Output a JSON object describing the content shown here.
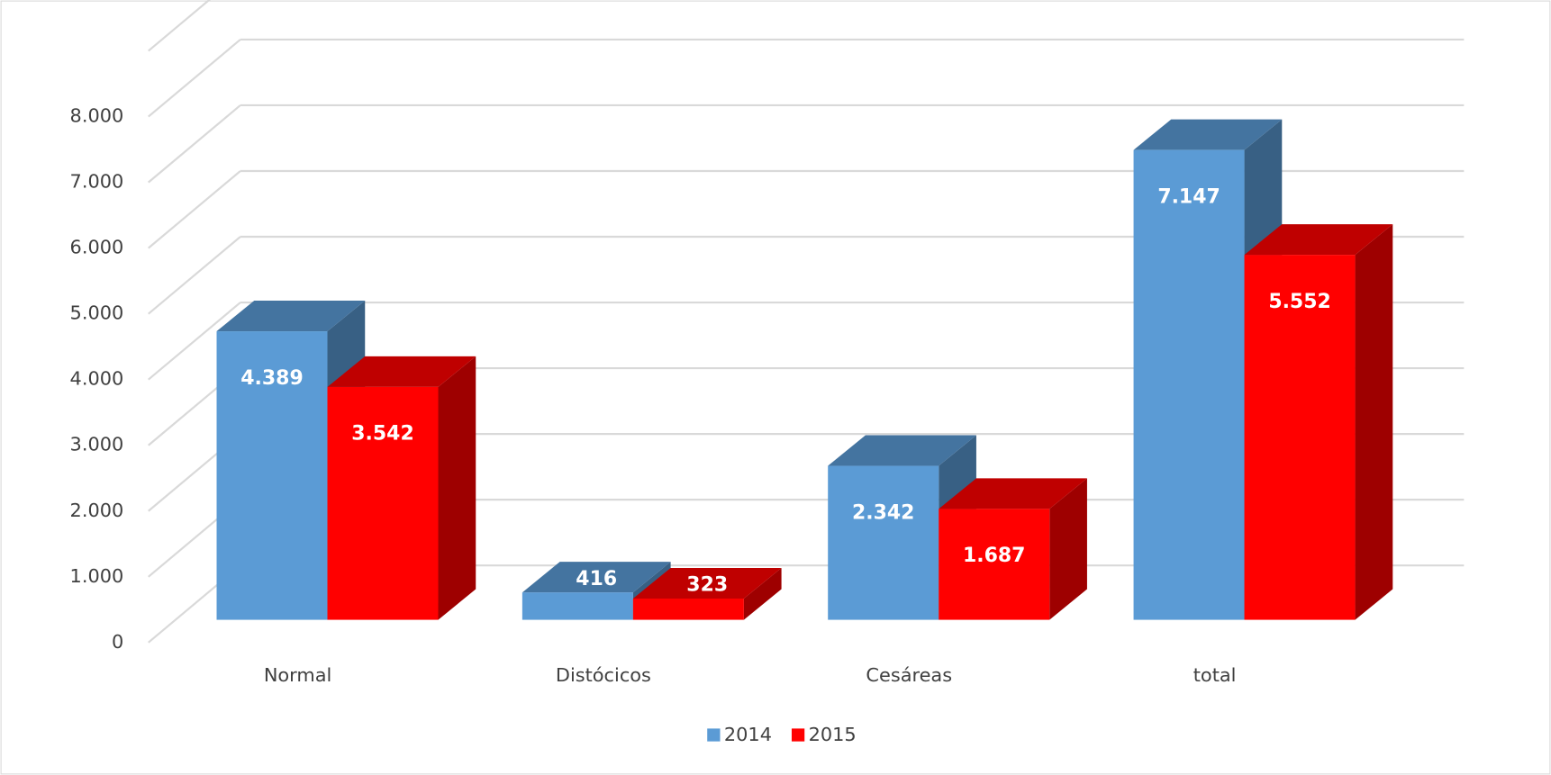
{
  "chart_data": {
    "type": "bar3d",
    "categories": [
      "Normal",
      "Distócicos",
      "Cesáreas",
      "total"
    ],
    "series": [
      {
        "name": "2014",
        "color": "#5b9bd5",
        "values": [
          4389,
          416,
          2342,
          7147
        ],
        "value_labels": [
          "4.389",
          "416",
          "2.342",
          "7.147"
        ]
      },
      {
        "name": "2015",
        "color": "#ff0000",
        "values": [
          3542,
          323,
          1687,
          5552
        ],
        "value_labels": [
          "3.542",
          "323",
          "1.687",
          "5.552"
        ]
      }
    ],
    "ylim": [
      0,
      9000
    ],
    "yticks": [
      0,
      {
        "value": 1000,
        "label": "1.000"
      },
      {
        "value": 2000,
        "label": "2.000"
      },
      {
        "value": 3000,
        "label": "3.000"
      },
      {
        "value": 4000,
        "label": "4.000"
      },
      {
        "value": 5000,
        "label": "5.000"
      },
      {
        "value": 6000,
        "label": "6.000"
      },
      {
        "value": 7000,
        "label": "7.000"
      },
      {
        "value": 8000,
        "label": "8.000"
      }
    ],
    "grid": true,
    "legend": "bottom"
  }
}
